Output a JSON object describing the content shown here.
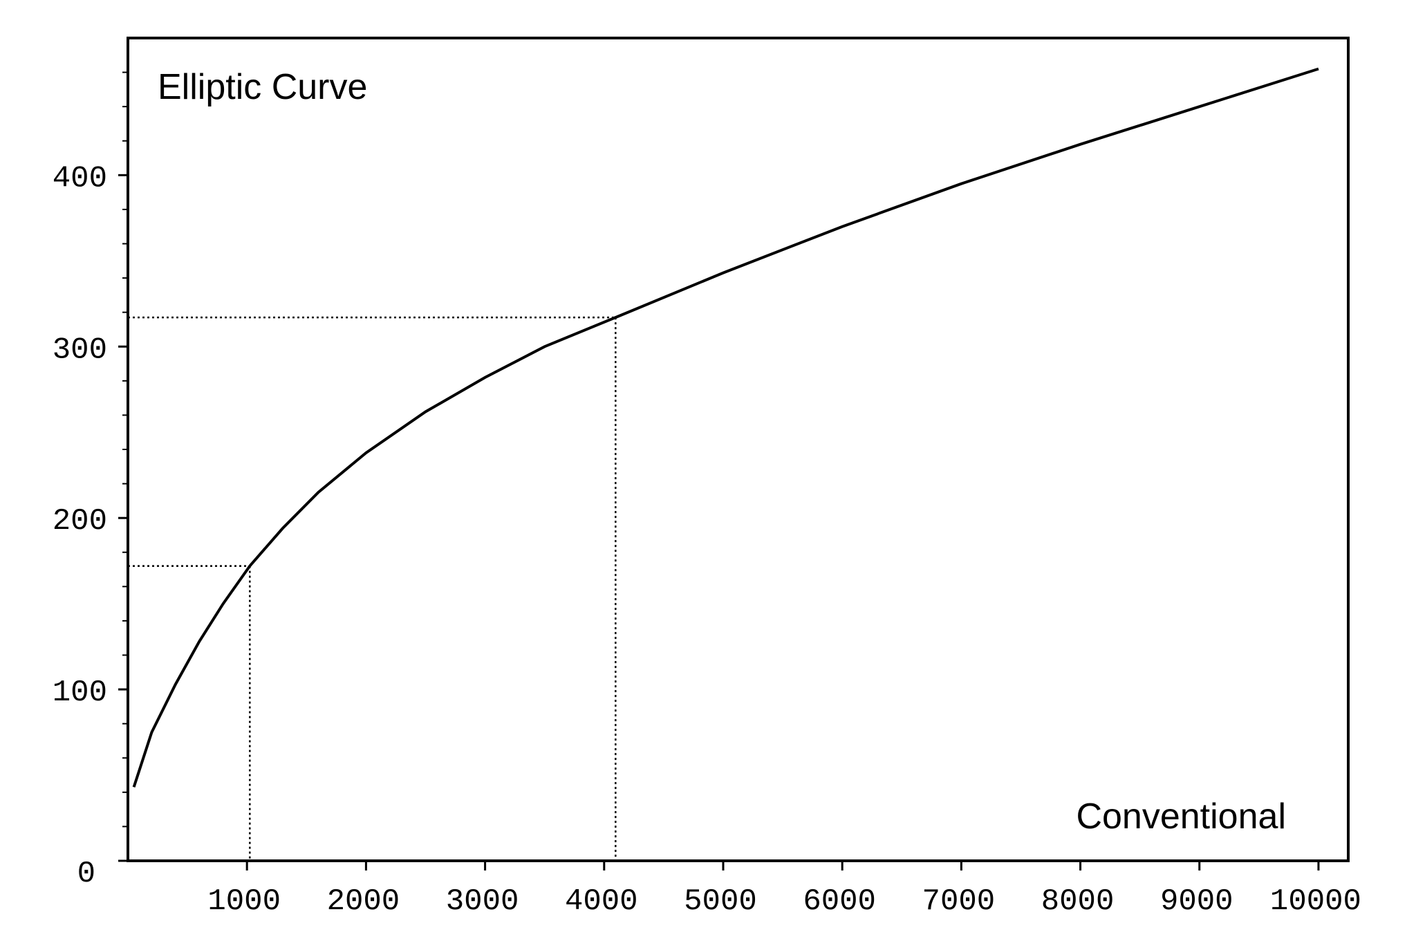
{
  "chart_data": {
    "type": "line",
    "ylabel": "Elliptic Curve",
    "xlabel": "Conventional",
    "xlim": [
      0,
      10250
    ],
    "ylim": [
      0,
      480
    ],
    "x_ticks": [
      1000,
      2000,
      3000,
      4000,
      5000,
      6000,
      7000,
      8000,
      9000,
      10000
    ],
    "y_ticks": [
      0,
      100,
      200,
      300,
      400
    ],
    "y_minor_step": 20,
    "grid": false,
    "legend": "none",
    "series": [
      {
        "x": [
          50,
          200,
          400,
          600,
          800,
          1024,
          1300,
          1600,
          2000,
          2500,
          3000,
          3500,
          4096,
          5000,
          6000,
          7000,
          8000,
          9000,
          10000
        ],
        "y": [
          43,
          75,
          103,
          128,
          150,
          172,
          194,
          215,
          238,
          262,
          282,
          300,
          317,
          343,
          370,
          395,
          418,
          440,
          462
        ]
      }
    ],
    "reference_points": [
      {
        "x": 1024,
        "y": 172
      },
      {
        "x": 4096,
        "y": 317
      }
    ]
  }
}
